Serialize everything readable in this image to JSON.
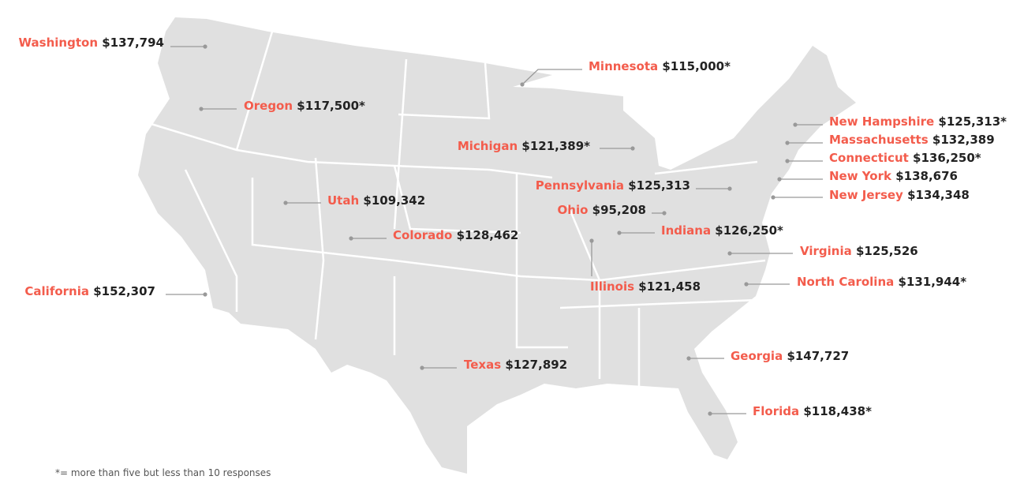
{
  "states": [
    {
      "name": "Washington",
      "value": "$137,794"
    },
    {
      "name": "Oregon",
      "value": "$117,500*"
    },
    {
      "name": "Minnesota",
      "value": "$115,000*"
    },
    {
      "name": "Michigan",
      "value": "$121,389*"
    },
    {
      "name": "Utah",
      "value": "$109,342"
    },
    {
      "name": "Colorado",
      "value": "$128,462"
    },
    {
      "name": "California",
      "value": "$152,307"
    },
    {
      "name": "Texas",
      "value": "$127,892"
    },
    {
      "name": "Pennsylvania",
      "value": "$125,313"
    },
    {
      "name": "Ohio",
      "value": "$95,208"
    },
    {
      "name": "Indiana",
      "value": "$126,250*"
    },
    {
      "name": "Illinois",
      "value": "$121,458"
    },
    {
      "name": "New Hampshire",
      "value": "$125,313*"
    },
    {
      "name": "Massachusetts",
      "value": "$132,389"
    },
    {
      "name": "Connecticut",
      "value": "$136,250*"
    },
    {
      "name": "New York",
      "value": "$138,676"
    },
    {
      "name": "New Jersey",
      "value": "$134,348"
    },
    {
      "name": "Virginia",
      "value": "$125,526"
    },
    {
      "name": "North Carolina",
      "value": "$131,944*"
    },
    {
      "name": "Georgia",
      "value": "$147,727"
    },
    {
      "name": "Florida",
      "value": "$118,438*"
    }
  ],
  "footnote": "*= more than five but less than 10 responses"
}
